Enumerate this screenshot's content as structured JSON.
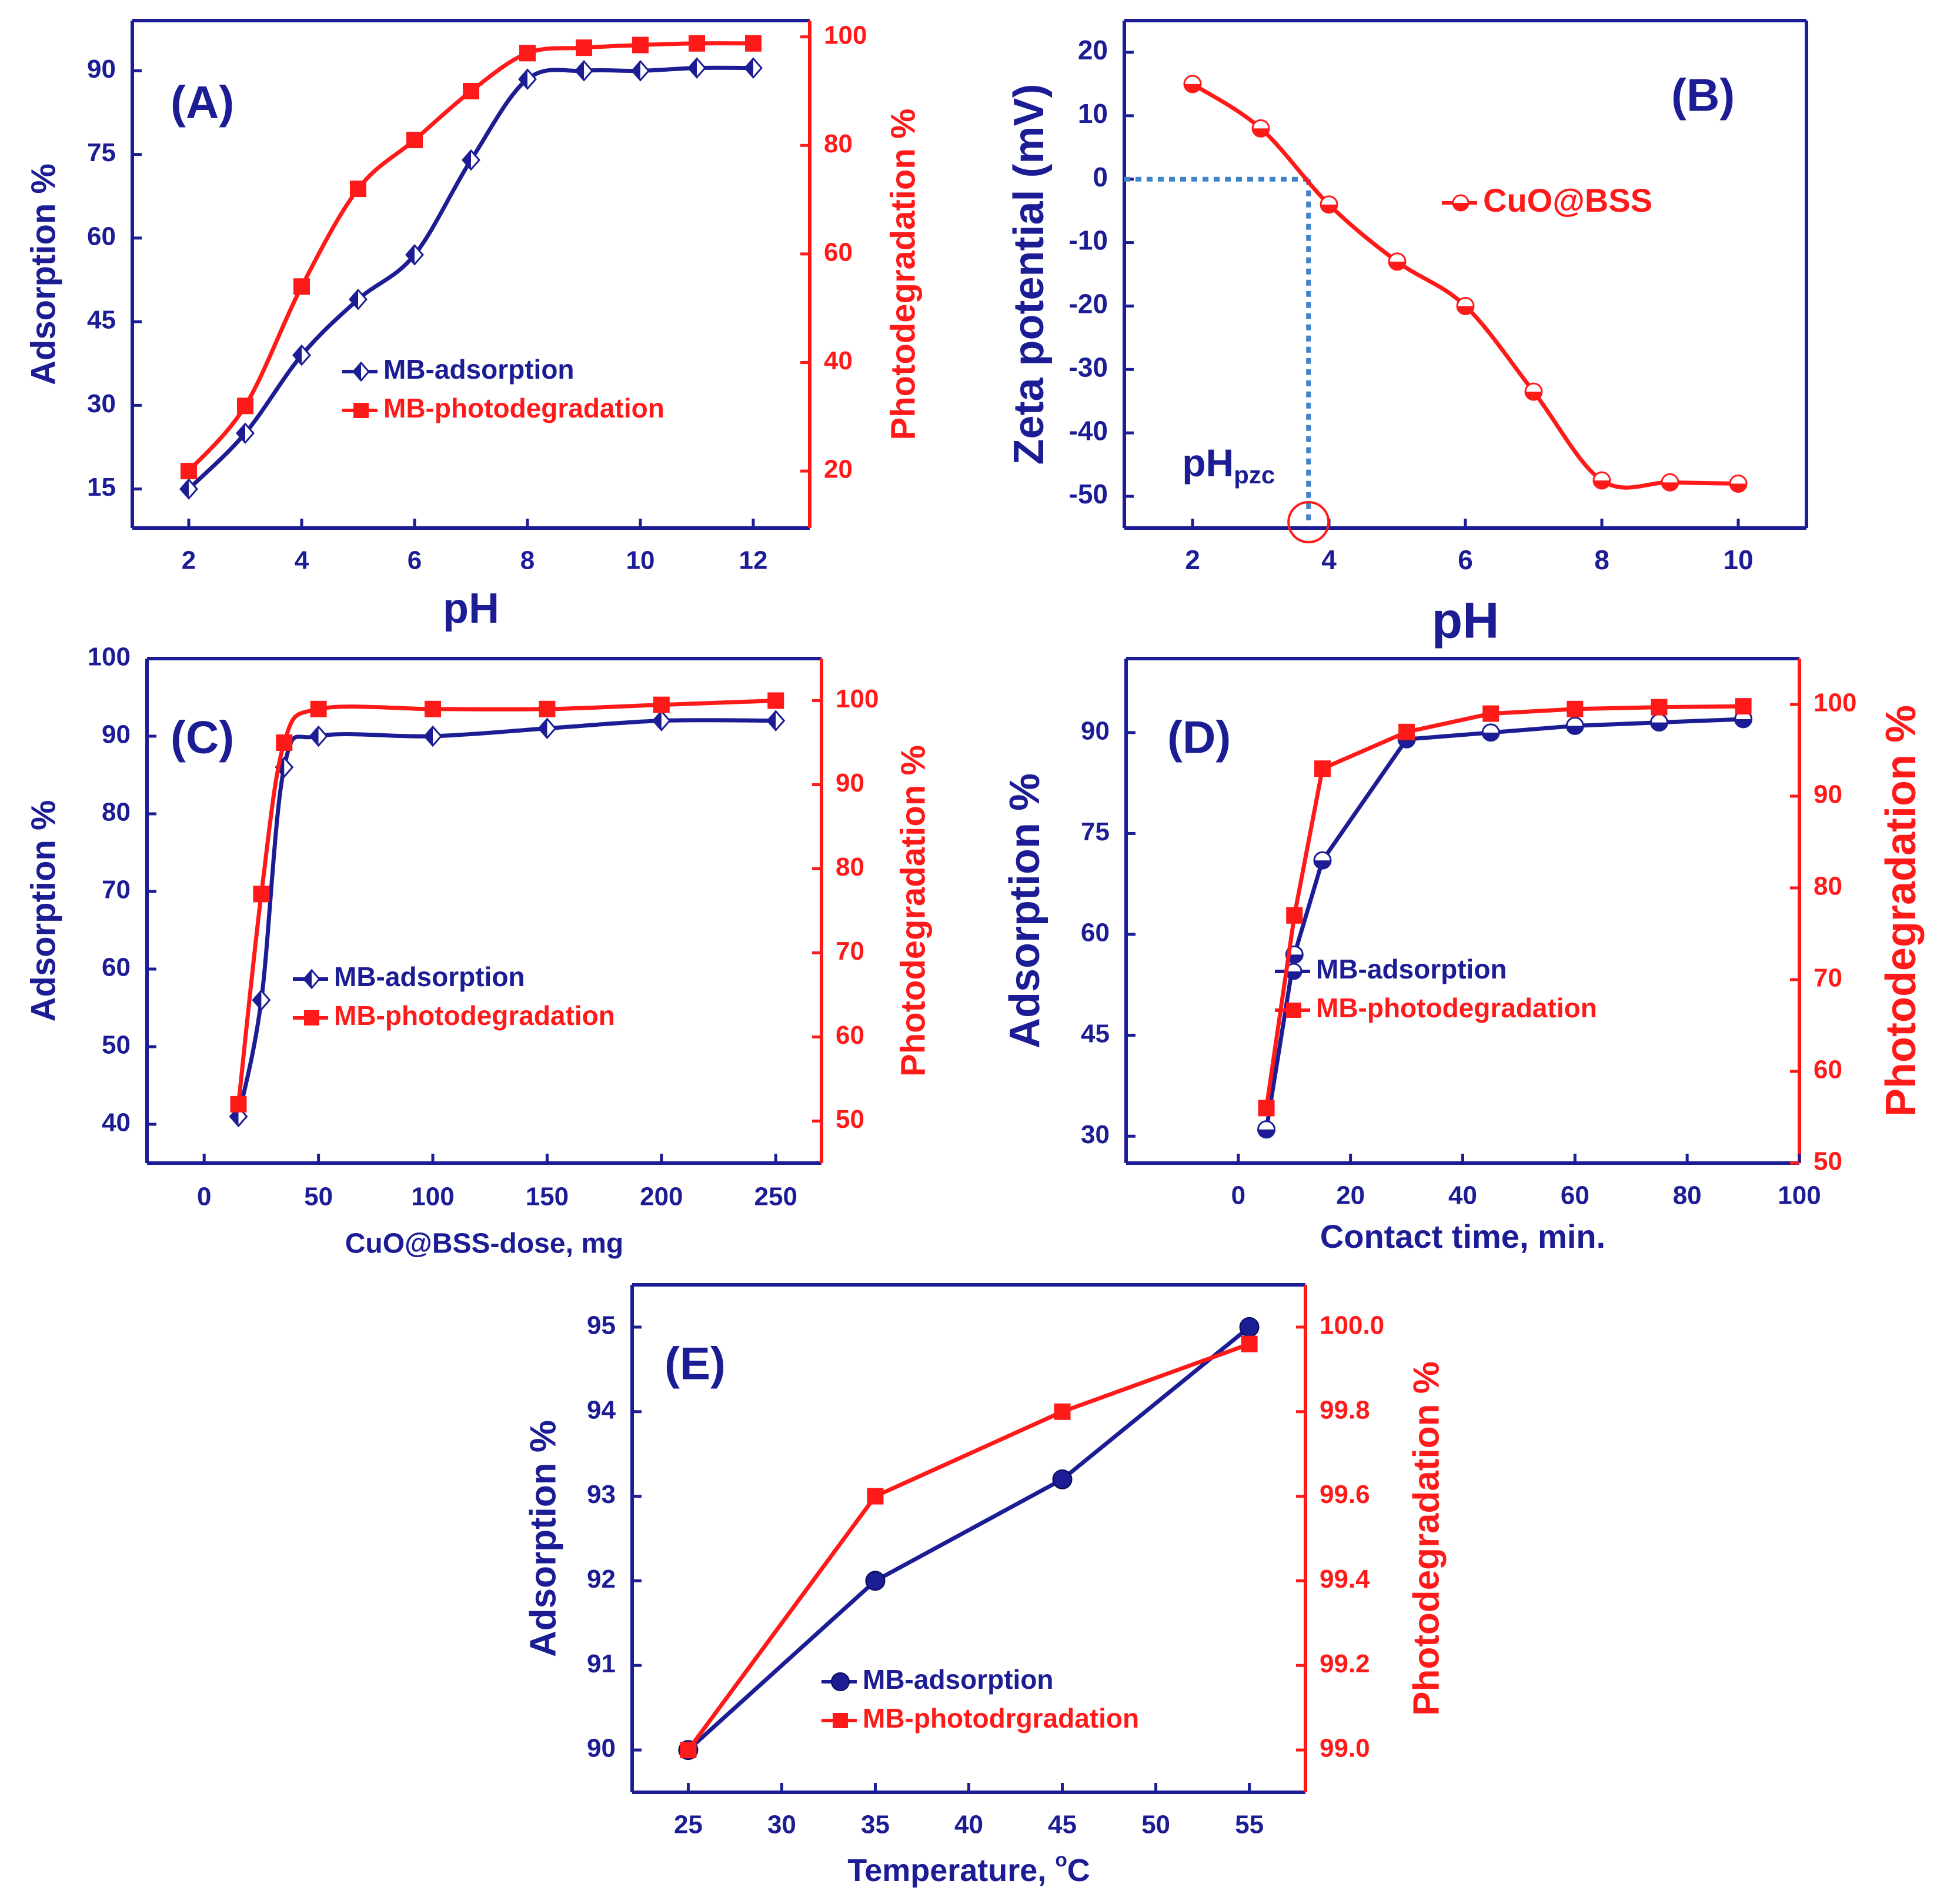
{
  "colors": {
    "blue": "#1c1c94",
    "red": "#ff1a1a",
    "zeta_dotted": "#3f83c9"
  },
  "chart_data": [
    {
      "id": "A",
      "type": "line",
      "panel_label": "(A)",
      "xlabel": "pH",
      "ylabel": "Adsorption %",
      "y2label": "Photodegradation %",
      "xlim": [
        1,
        13
      ],
      "ylim": [
        8,
        99
      ],
      "y2lim": [
        9.5,
        103
      ],
      "xticks": [
        2,
        4,
        6,
        8,
        10,
        12
      ],
      "yticks": [
        15,
        30,
        45,
        60,
        75,
        90
      ],
      "y2ticks": [
        20,
        40,
        60,
        80,
        100
      ],
      "series": [
        {
          "name": "MB-adsorption",
          "axis": "left",
          "marker": "diamond-half",
          "smooth": true,
          "x": [
            2,
            3,
            4,
            5,
            6,
            7,
            8,
            9,
            10,
            11,
            12
          ],
          "y": [
            15,
            25,
            39,
            49,
            57,
            74,
            88.5,
            90,
            90,
            90.5,
            90.5
          ]
        },
        {
          "name": "MB-photodegradation",
          "axis": "right",
          "marker": "square",
          "smooth": true,
          "x": [
            2,
            3,
            4,
            5,
            6,
            7,
            8,
            9,
            10,
            11,
            12
          ],
          "y": [
            20,
            32,
            54,
            72,
            81,
            90,
            97,
            98,
            98.5,
            98.8,
            98.8
          ]
        }
      ]
    },
    {
      "id": "B",
      "type": "line",
      "panel_label": "(B)",
      "xlabel": "pH",
      "ylabel": "Zeta potential (mV)",
      "xlim": [
        1,
        11
      ],
      "ylim": [
        -55,
        25
      ],
      "xticks": [
        2,
        4,
        6,
        8,
        10
      ],
      "yticks": [
        20,
        10,
        0,
        -10,
        -20,
        -30,
        -40,
        -50
      ],
      "series": [
        {
          "name": "CuO@BSS",
          "axis": "left",
          "marker": "circle-half",
          "smooth": true,
          "x": [
            2,
            3,
            4,
            5,
            6,
            7,
            8,
            9,
            10
          ],
          "y": [
            15,
            8,
            -4,
            -13,
            -20,
            -33.5,
            -47.5,
            -47.8,
            -48
          ]
        }
      ],
      "pzc": {
        "label": "pH",
        "subscript": "pzc",
        "x": 3.7,
        "y": 0
      }
    },
    {
      "id": "C",
      "type": "line",
      "panel_label": "(C)",
      "xlabel": "CuO@BSS-dose, mg",
      "ylabel": "Adsorption %",
      "y2label": "Photodegradation %",
      "xlim": [
        -25,
        270
      ],
      "ylim": [
        35,
        100
      ],
      "y2lim": [
        45,
        105
      ],
      "xticks": [
        0,
        50,
        100,
        150,
        200,
        250
      ],
      "yticks": [
        40,
        50,
        60,
        70,
        80,
        90,
        100
      ],
      "y2ticks": [
        50,
        60,
        70,
        80,
        90,
        100
      ],
      "series": [
        {
          "name": "MB-adsorption",
          "axis": "left",
          "marker": "diamond-half",
          "smooth": true,
          "x": [
            15,
            25,
            35,
            50,
            100,
            150,
            200,
            250
          ],
          "y": [
            41,
            56,
            86,
            90,
            90,
            91,
            92,
            92
          ]
        },
        {
          "name": "MB-photodegradation",
          "axis": "right",
          "marker": "square",
          "smooth": true,
          "x": [
            15,
            25,
            35,
            50,
            100,
            150,
            200,
            250
          ],
          "y": [
            52,
            77,
            95,
            99,
            99,
            99,
            99.5,
            100
          ]
        }
      ]
    },
    {
      "id": "D",
      "type": "line",
      "panel_label": "(D)",
      "xlabel": "Contact time, min.",
      "ylabel": "Adsorption %",
      "y2label": "Photodegradation %",
      "xlim": [
        -20,
        100
      ],
      "ylim": [
        26,
        101
      ],
      "y2lim": [
        50,
        105
      ],
      "xticks": [
        0,
        20,
        40,
        60,
        80,
        100
      ],
      "yticks": [
        30,
        45,
        60,
        75,
        90
      ],
      "y2ticks": [
        50,
        60,
        70,
        80,
        90,
        100
      ],
      "series": [
        {
          "name": "MB-adsorption",
          "axis": "left",
          "marker": "circle-half",
          "smooth": false,
          "x": [
            5,
            10,
            15,
            30,
            45,
            60,
            75,
            90
          ],
          "y": [
            31,
            57,
            71,
            89,
            90,
            91,
            91.5,
            92
          ]
        },
        {
          "name": "MB-photodegradation",
          "axis": "right",
          "marker": "square",
          "smooth": false,
          "x": [
            5,
            10,
            15,
            30,
            45,
            60,
            75,
            90
          ],
          "y": [
            56,
            77,
            93,
            97,
            99,
            99.5,
            99.7,
            99.8
          ]
        }
      ]
    },
    {
      "id": "E",
      "type": "line",
      "panel_label": "(E)",
      "xlabel": "Temperature, ",
      "xlabel_unit_sup": "o",
      "xlabel_unit": "C",
      "ylabel": "Adsorption %",
      "y2label": "Photodegradation %",
      "xlim": [
        22,
        58
      ],
      "ylim": [
        89.5,
        95.5
      ],
      "y2lim": [
        98.9,
        100.1
      ],
      "xticks": [
        25,
        30,
        35,
        40,
        45,
        50,
        55
      ],
      "yticks": [
        90,
        91,
        92,
        93,
        94,
        95
      ],
      "y2ticks": [
        99.0,
        99.2,
        99.4,
        99.6,
        99.8,
        100.0
      ],
      "y2tick_labels": [
        "99.0",
        "99.2",
        "99.4",
        "99.6",
        "99.8",
        "100.0"
      ],
      "series": [
        {
          "name": "MB-adsorption",
          "axis": "left",
          "marker": "circle-filled",
          "smooth": false,
          "x": [
            25,
            35,
            45,
            55
          ],
          "y": [
            90,
            92,
            93.2,
            95
          ]
        },
        {
          "name": "MB-photodrgradation",
          "axis": "right",
          "marker": "square",
          "smooth": false,
          "x": [
            25,
            35,
            45,
            55
          ],
          "y": [
            99,
            99.6,
            99.8,
            99.96
          ]
        }
      ]
    }
  ]
}
